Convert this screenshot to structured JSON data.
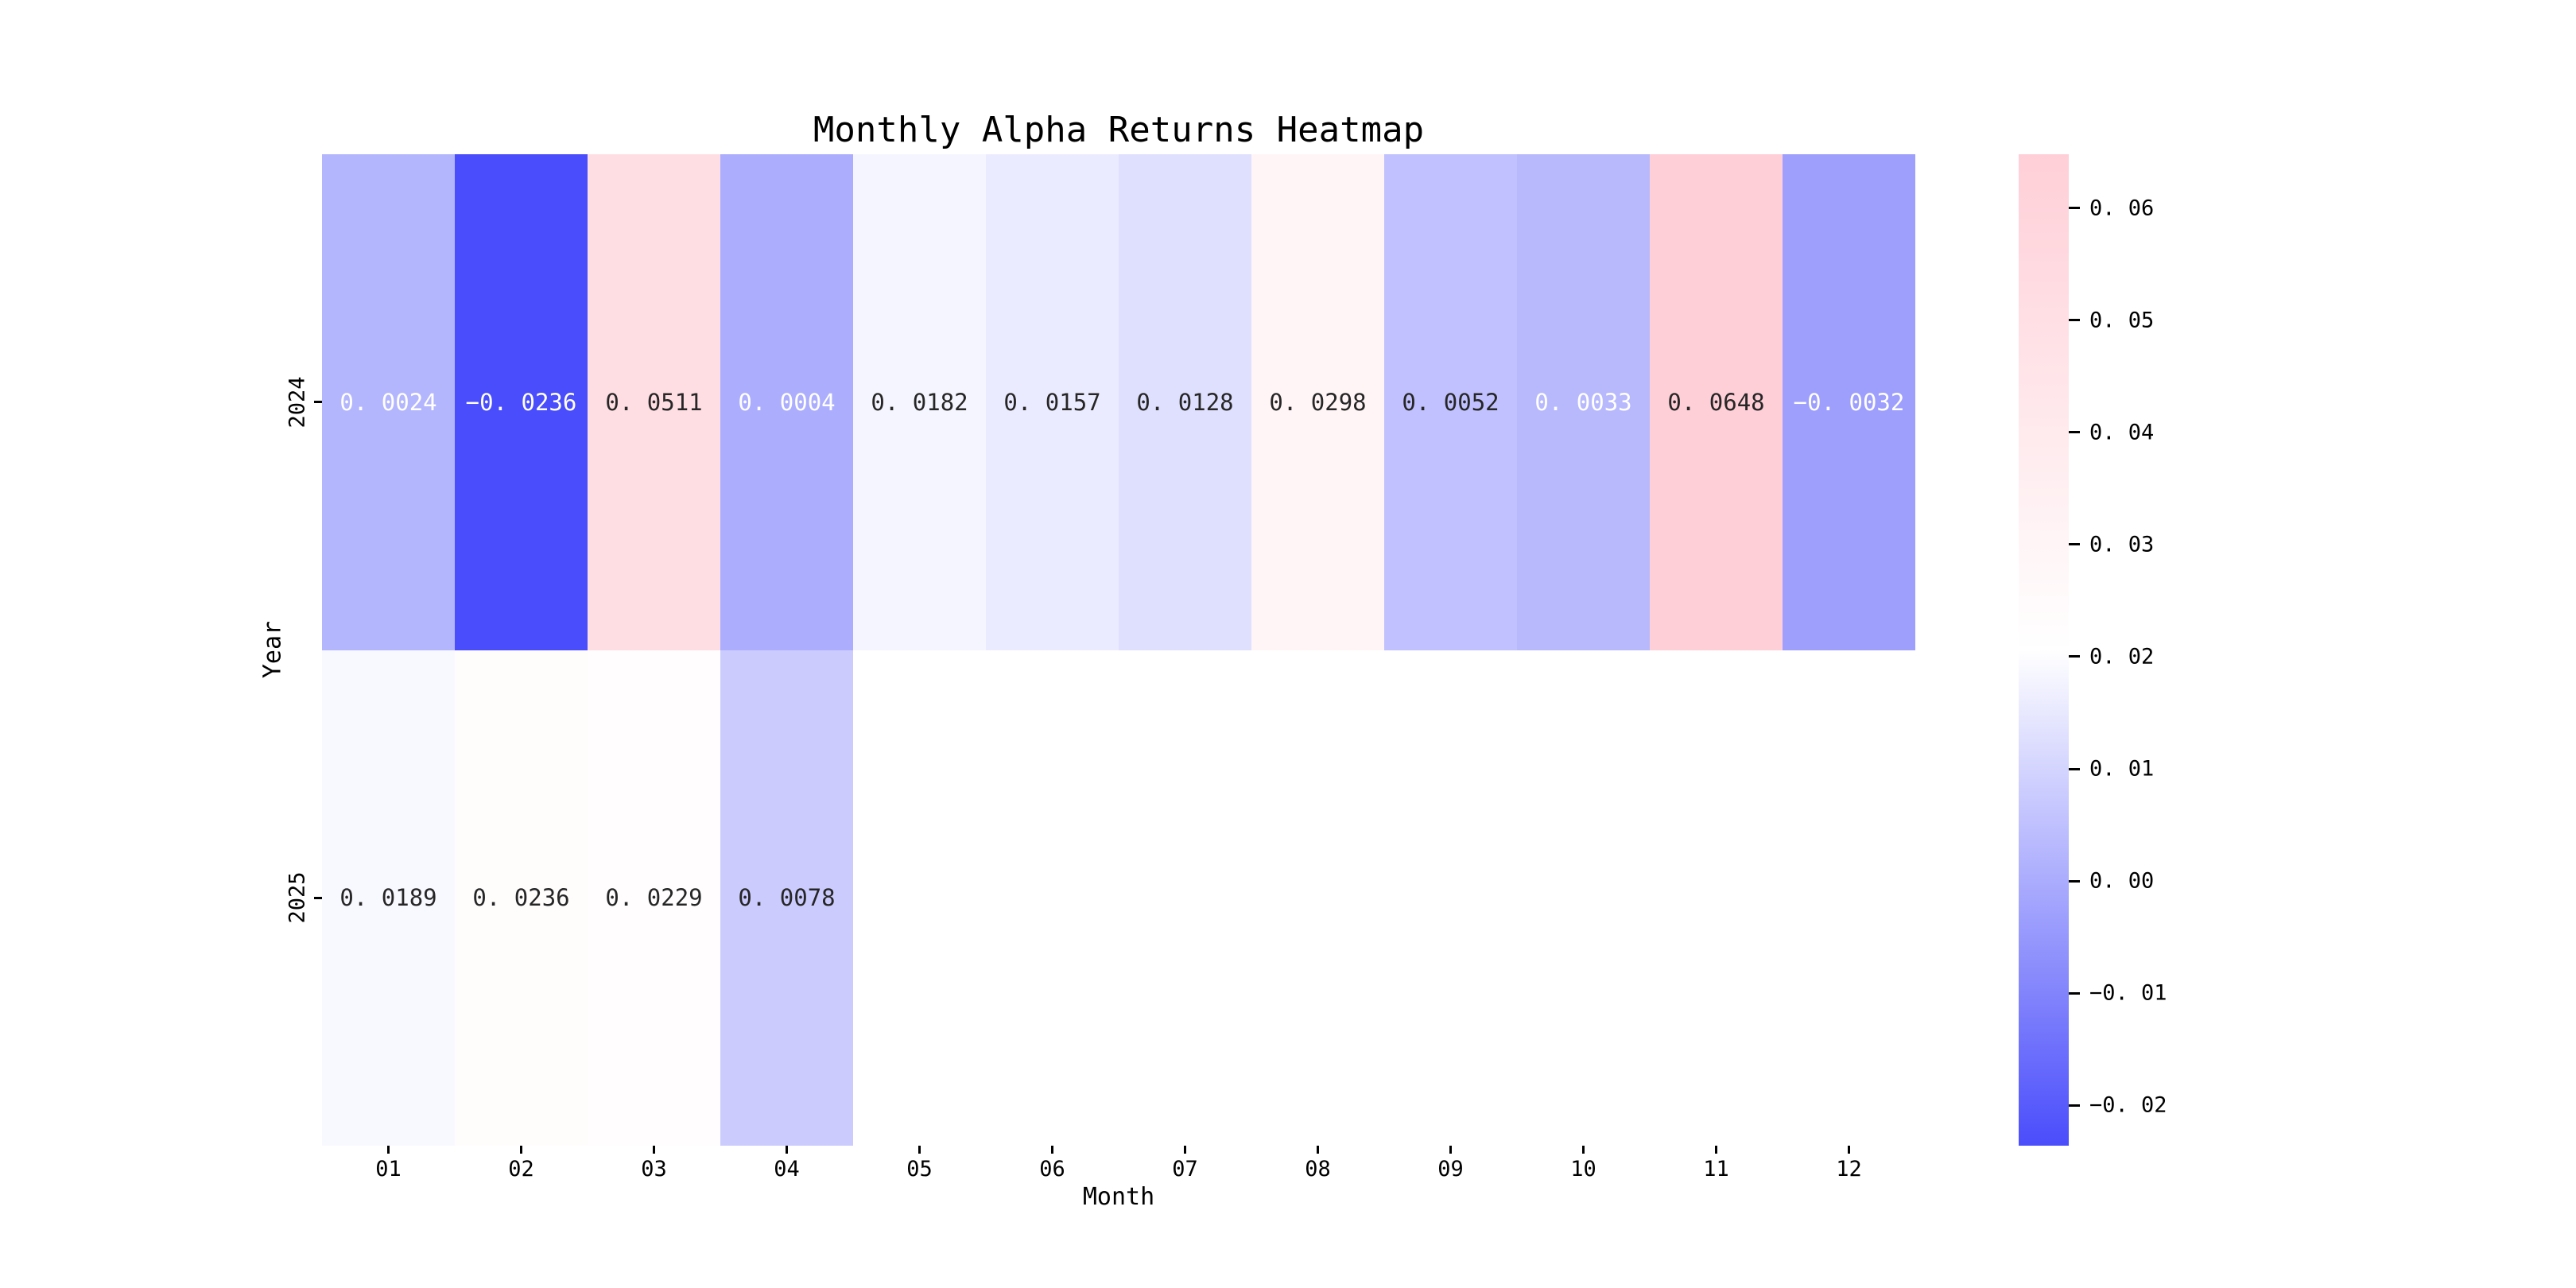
{
  "figure": {
    "title": "Monthly Alpha Returns Heatmap",
    "background_color": "#ffffff"
  },
  "chart_data": {
    "type": "heatmap",
    "title": "Monthly Alpha Returns Heatmap",
    "xlabel": "Month",
    "ylabel": "Year",
    "x_categories": [
      "01",
      "02",
      "03",
      "04",
      "05",
      "06",
      "07",
      "08",
      "09",
      "10",
      "11",
      "12"
    ],
    "y_categories": [
      "2024",
      "2025"
    ],
    "values": [
      [
        0.0024,
        -0.0236,
        0.0511,
        0.0004,
        0.0182,
        0.0157,
        0.0128,
        0.0298,
        0.0052,
        0.0033,
        0.0648,
        -0.0032
      ],
      [
        0.0189,
        0.0236,
        0.0229,
        0.0078,
        null,
        null,
        null,
        null,
        null,
        null,
        null,
        null
      ]
    ],
    "annotations": [
      [
        "0.0024",
        "-0.0236",
        "0.0511",
        "0.0004",
        "0.0182",
        "0.0157",
        "0.0128",
        "0.0298",
        "0.0052",
        "0.0033",
        "0.0648",
        "-0.0032"
      ],
      [
        "0.0189",
        "0.0236",
        "0.0229",
        "0.0078",
        "",
        "",
        "",
        "",
        "",
        "",
        "",
        ""
      ]
    ],
    "annotation_text_colors": [
      [
        "#ffffff",
        "#ffffff",
        "#262626",
        "#ffffff",
        "#262626",
        "#262626",
        "#262626",
        "#262626",
        "#262626",
        "#ffffff",
        "#262626",
        "#ffffff"
      ],
      [
        "#262626",
        "#262626",
        "#262626",
        "#262626",
        "",
        "",
        "",
        "",
        "",
        "",
        "",
        ""
      ]
    ],
    "colormap": {
      "low_color": "#4A4DFB",
      "mid_color": "#FFFFFF",
      "high_color": "#FFCFD7",
      "vmin": -0.0236,
      "vmax": 0.0648
    },
    "colorbar": {
      "tick_labels": [
        "0.06",
        "0.05",
        "0.04",
        "0.03",
        "0.02",
        "0.01",
        "0.00",
        "-0.01",
        "-0.02"
      ],
      "tick_values": [
        0.06,
        0.05,
        0.04,
        0.03,
        0.02,
        0.01,
        0.0,
        -0.01,
        -0.02
      ]
    },
    "grid": false,
    "legend": false
  }
}
